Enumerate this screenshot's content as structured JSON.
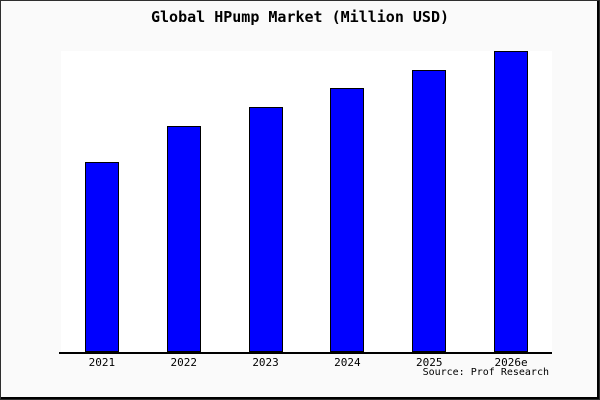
{
  "chart_data": {
    "type": "bar",
    "title": "Global HPump Market (Million USD)",
    "categories": [
      "2021",
      "2022",
      "2023",
      "2024",
      "2025",
      "2026e"
    ],
    "values": [
      63.1,
      75.1,
      81.4,
      87.7,
      93.7,
      100
    ],
    "value_scale": "relative height, percent of tallest (2026e) bar; no y-axis values shown in image",
    "xlabel": "",
    "ylabel": "",
    "ylim": [
      0,
      100
    ],
    "grid": false,
    "legend": null,
    "bar_color": "#0000ff",
    "bar_border_color": "#000000",
    "plot_background": "#ffffff",
    "background": "#fafafa",
    "text_color": "#000000"
  },
  "source_credit": "Source: Prof Research"
}
